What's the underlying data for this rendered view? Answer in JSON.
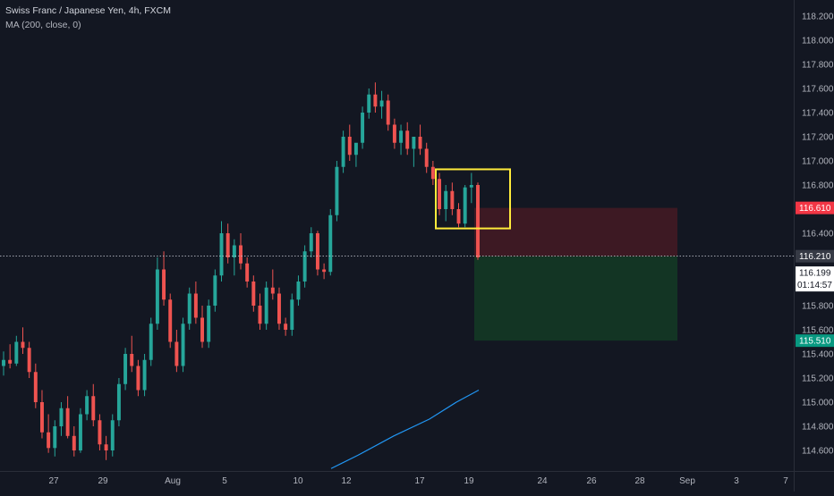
{
  "legend": {
    "symbol": "Swiss Franc / Japanese Yen, 4h, FXCM",
    "indicator": "MA (200, close, 0)"
  },
  "colors": {
    "background": "#131722",
    "up": "#26a69a",
    "down": "#ef5350",
    "ma": "#2196f3",
    "highlight_box": "#ffeb3b",
    "stop_zone": "rgba(140,30,38,0.35)",
    "target_zone": "rgba(20,90,40,0.45)",
    "stop_label": "#f23645",
    "target_label": "#089981",
    "axis_text": "#b2b5be"
  },
  "chart_data": {
    "type": "candlestick",
    "y_axis": {
      "min": 114.5,
      "max": 118.3,
      "ticks": [
        "114.600",
        "114.800",
        "115.000",
        "115.200",
        "115.400",
        "115.600",
        "115.800",
        "116.000",
        "116.200",
        "116.400",
        "116.600",
        "116.800",
        "117.000",
        "117.200",
        "117.400",
        "117.600",
        "117.800",
        "118.000",
        "118.200"
      ]
    },
    "x_axis": {
      "ticks": [
        "27",
        "29",
        "Aug",
        "5",
        "10",
        "12",
        "17",
        "19",
        "24",
        "26",
        "28",
        "Sep",
        "3",
        "7"
      ]
    },
    "price_line": {
      "value": 116.21,
      "label": "116.210"
    },
    "current_price": {
      "value": 116.199,
      "label": "116.199",
      "countdown": "01:14:57"
    },
    "stop_level": {
      "value": 116.61,
      "label": "116.610"
    },
    "target_level": {
      "value": 115.51,
      "label": "115.510"
    },
    "entry_level": 116.21,
    "highlight_box": {
      "price_top": 116.93,
      "price_bottom": 116.44
    },
    "grid": false,
    "candles_sampled": [
      [
        115.3,
        115.42,
        115.22,
        115.35
      ],
      [
        115.35,
        115.48,
        115.28,
        115.32
      ],
      [
        115.32,
        115.55,
        115.3,
        115.5
      ],
      [
        115.5,
        115.62,
        115.4,
        115.45
      ],
      [
        115.45,
        115.5,
        115.2,
        115.25
      ],
      [
        115.25,
        115.32,
        114.95,
        115.0
      ],
      [
        115.0,
        115.1,
        114.7,
        114.75
      ],
      [
        114.75,
        114.9,
        114.58,
        114.62
      ],
      [
        114.62,
        114.85,
        114.55,
        114.8
      ],
      [
        114.8,
        115.0,
        114.72,
        114.95
      ],
      [
        114.95,
        115.05,
        114.7,
        114.72
      ],
      [
        114.72,
        114.8,
        114.55,
        114.6
      ],
      [
        114.6,
        114.95,
        114.58,
        114.9
      ],
      [
        114.9,
        115.1,
        114.85,
        115.05
      ],
      [
        115.05,
        115.15,
        114.8,
        114.85
      ],
      [
        114.85,
        114.9,
        114.6,
        114.65
      ],
      [
        114.65,
        114.72,
        114.52,
        114.6
      ],
      [
        114.6,
        114.9,
        114.55,
        114.85
      ],
      [
        114.85,
        115.2,
        114.8,
        115.15
      ],
      [
        115.15,
        115.45,
        115.1,
        115.4
      ],
      [
        115.4,
        115.55,
        115.25,
        115.3
      ],
      [
        115.3,
        115.35,
        115.05,
        115.1
      ],
      [
        115.1,
        115.4,
        115.05,
        115.35
      ],
      [
        115.35,
        115.7,
        115.3,
        115.65
      ],
      [
        115.65,
        116.2,
        115.6,
        116.1
      ],
      [
        116.1,
        116.25,
        115.8,
        115.85
      ],
      [
        115.85,
        115.9,
        115.45,
        115.5
      ],
      [
        115.5,
        115.6,
        115.25,
        115.3
      ],
      [
        115.3,
        115.7,
        115.25,
        115.65
      ],
      [
        115.65,
        115.95,
        115.6,
        115.9
      ],
      [
        115.9,
        116.0,
        115.65,
        115.7
      ],
      [
        115.7,
        115.8,
        115.45,
        115.5
      ],
      [
        115.5,
        115.85,
        115.45,
        115.8
      ],
      [
        115.8,
        116.1,
        115.75,
        116.05
      ],
      [
        116.05,
        116.5,
        116.0,
        116.4
      ],
      [
        116.4,
        116.48,
        116.15,
        116.2
      ],
      [
        116.2,
        116.35,
        116.05,
        116.3
      ],
      [
        116.3,
        116.4,
        116.1,
        116.15
      ],
      [
        116.15,
        116.2,
        115.95,
        116.0
      ],
      [
        116.0,
        116.05,
        115.75,
        115.8
      ],
      [
        115.8,
        115.9,
        115.6,
        115.65
      ],
      [
        115.65,
        116.0,
        115.6,
        115.95
      ],
      [
        115.95,
        116.1,
        115.85,
        115.9
      ],
      [
        115.9,
        115.95,
        115.6,
        115.65
      ],
      [
        115.65,
        115.7,
        115.55,
        115.6
      ],
      [
        115.6,
        115.9,
        115.55,
        115.85
      ],
      [
        115.85,
        116.05,
        115.8,
        116.0
      ],
      [
        116.0,
        116.3,
        115.95,
        116.25
      ],
      [
        116.25,
        116.45,
        116.2,
        116.4
      ],
      [
        116.4,
        116.42,
        116.05,
        116.1
      ],
      [
        116.1,
        116.15,
        116.02,
        116.08
      ],
      [
        116.08,
        116.6,
        116.05,
        116.55
      ],
      [
        116.55,
        117.0,
        116.5,
        116.95
      ],
      [
        116.95,
        117.25,
        116.9,
        117.2
      ],
      [
        117.2,
        117.3,
        117.0,
        117.05
      ],
      [
        117.05,
        117.1,
        116.95,
        117.15
      ],
      [
        117.15,
        117.45,
        117.1,
        117.4
      ],
      [
        117.4,
        117.6,
        117.35,
        117.55
      ],
      [
        117.55,
        117.65,
        117.4,
        117.45
      ],
      [
        117.45,
        117.58,
        117.35,
        117.5
      ],
      [
        117.5,
        117.55,
        117.25,
        117.3
      ],
      [
        117.3,
        117.35,
        117.1,
        117.15
      ],
      [
        117.15,
        117.3,
        117.05,
        117.25
      ],
      [
        117.25,
        117.32,
        117.05,
        117.1
      ],
      [
        117.1,
        117.15,
        116.95,
        117.2
      ],
      [
        117.2,
        117.3,
        117.05,
        117.1
      ],
      [
        117.1,
        117.15,
        116.9,
        116.95
      ],
      [
        116.95,
        117.0,
        116.8,
        116.85
      ],
      [
        116.85,
        116.9,
        116.55,
        116.6
      ],
      [
        116.6,
        116.8,
        116.5,
        116.75
      ],
      [
        116.75,
        116.82,
        116.55,
        116.6
      ],
      [
        116.6,
        116.65,
        116.45,
        116.48
      ],
      [
        116.48,
        116.8,
        116.45,
        116.78
      ],
      [
        116.78,
        116.9,
        116.65,
        116.8
      ],
      [
        116.8,
        116.82,
        116.18,
        116.2
      ]
    ],
    "ma_series": [
      [
        114.15,
        114.45
      ],
      [
        114.3,
        114.56
      ],
      [
        114.5,
        114.72
      ],
      [
        114.7,
        114.86
      ],
      [
        114.9,
        115.0
      ],
      [
        115.1,
        115.1
      ]
    ],
    "ma_label": "MA (200, close, 0)"
  }
}
